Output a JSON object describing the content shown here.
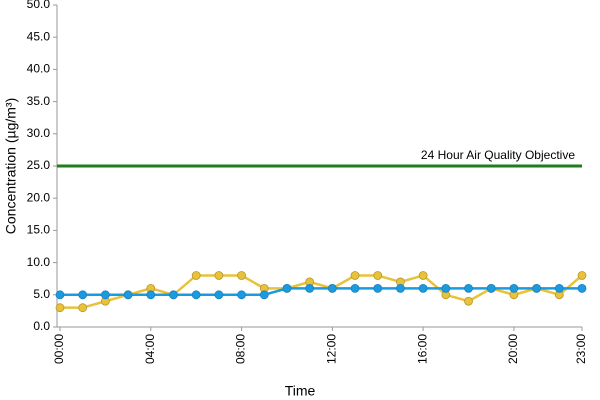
{
  "chart_data": {
    "type": "line",
    "xlabel": "Time",
    "ylabel": "Concentration (µg/m³)",
    "categories": [
      "00:00",
      null,
      null,
      null,
      "04:00",
      null,
      null,
      null,
      "08:00",
      null,
      null,
      null,
      "12:00",
      null,
      null,
      null,
      "16:00",
      null,
      null,
      null,
      "20:00",
      null,
      null,
      "23:00"
    ],
    "series": [
      {
        "color": "#e8c23a",
        "values": [
          3,
          3,
          4,
          5,
          6,
          5,
          8,
          8,
          8,
          6,
          6,
          7,
          6,
          8,
          8,
          7,
          8,
          5,
          4,
          6,
          5,
          6,
          5,
          8
        ]
      },
      {
        "color": "#1a9be0",
        "values": [
          5,
          5,
          5,
          5,
          5,
          5,
          5,
          5,
          5,
          5,
          6,
          6,
          6,
          6,
          6,
          6,
          6,
          6,
          6,
          6,
          6,
          6,
          6,
          6
        ]
      }
    ],
    "reference_line": {
      "value": 25,
      "label": "24 Hour Air Quality Objective",
      "color": "#1e7d1e"
    },
    "ylim": [
      0,
      50
    ],
    "yticks": [
      {
        "value": 0,
        "label": "0.0"
      },
      {
        "value": 5,
        "label": "5.0"
      },
      {
        "value": 10,
        "label": "10.0"
      },
      {
        "value": 15,
        "label": "15.0"
      },
      {
        "value": 20,
        "label": "20.0"
      },
      {
        "value": 25,
        "label": "25.0"
      },
      {
        "value": 30,
        "label": "30.0"
      },
      {
        "value": 35,
        "label": "35.0"
      },
      {
        "value": 40,
        "label": "40.0"
      },
      {
        "value": 45,
        "label": "45.0"
      },
      {
        "value": 50,
        "label": "50.0"
      }
    ],
    "grid": false
  }
}
